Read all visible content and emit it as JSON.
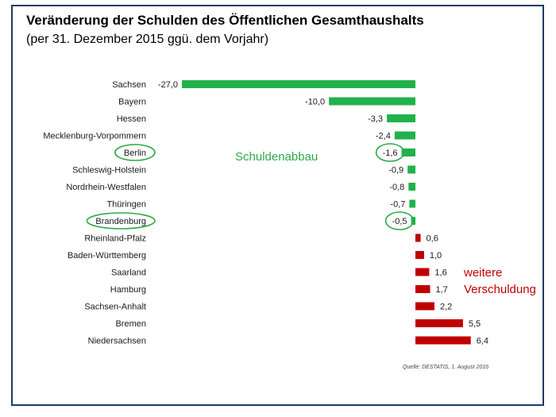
{
  "title": "Veränderung der Schulden des Öffentlichen Gesamthaushalts",
  "subtitle": "(per 31. Dezember 2015 ggü. dem Vorjahr)",
  "source": "Quelle: DESTATIS, 1. August 2016",
  "annotations": {
    "decrease": "Schuldenabbau",
    "increase_line1": "weitere",
    "increase_line2": "Verschuldung"
  },
  "colors": {
    "negative": "#21b24b",
    "positive": "#c00000",
    "highlight_circle": "#2eaa4a",
    "frame": "#1f3b63"
  },
  "chart_data": {
    "type": "bar",
    "orientation": "horizontal",
    "xlim": [
      -27,
      7
    ],
    "grid": false,
    "legend": "none",
    "categories": [
      "Sachsen",
      "Bayern",
      "Hessen",
      "Mecklenburg-Vorpommern",
      "Berlin",
      "Schleswig-Holstein",
      "Nordrhein-Westfalen",
      "Thüringen",
      "Brandenburg",
      "Rheinland-Pfalz",
      "Baden-Württemberg",
      "Saarland",
      "Hamburg",
      "Sachsen-Anhalt",
      "Bremen",
      "Niedersachsen"
    ],
    "values": [
      -27.0,
      -10.0,
      -3.3,
      -2.4,
      -1.6,
      -0.9,
      -0.8,
      -0.7,
      -0.5,
      0.6,
      1.0,
      1.6,
      1.7,
      2.2,
      5.5,
      6.4
    ],
    "value_labels": [
      "-27,0",
      "-10,0",
      "-3,3",
      "-2,4",
      "-1,6",
      "-0,9",
      "-0,8",
      "-0,7",
      "-0,5",
      "0,6",
      "1,0",
      "1,6",
      "1,7",
      "2,2",
      "5,5",
      "6,4"
    ],
    "highlighted": [
      "Berlin",
      "Brandenburg"
    ]
  }
}
